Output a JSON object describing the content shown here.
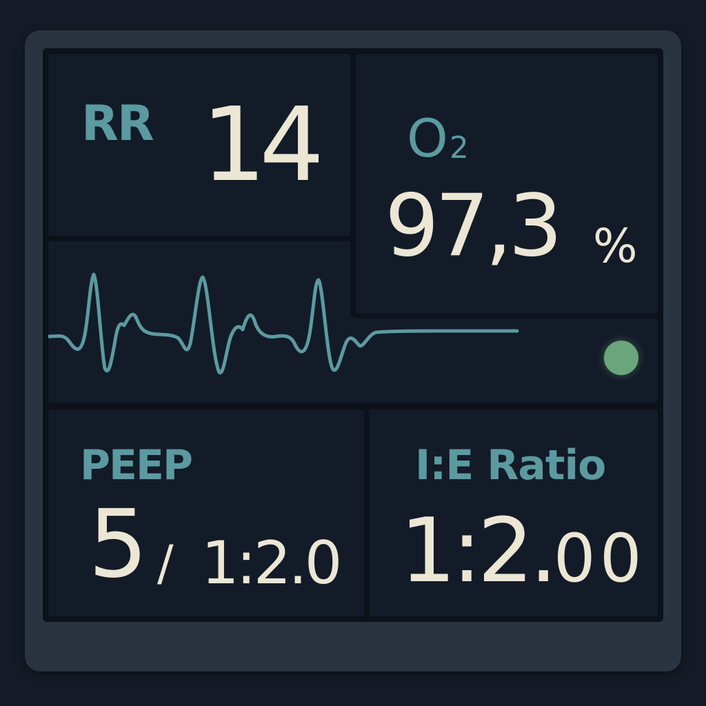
{
  "respiratory_rate": {
    "label": "RR",
    "value": "14"
  },
  "oxygen": {
    "label": "O",
    "label_subscript": "2",
    "value": "97,3",
    "unit": "%"
  },
  "waveform": {
    "status_indicator_color": "#6aa67a",
    "trace_color": "#5b9aa0"
  },
  "peep": {
    "label": "PEEP",
    "value": "5",
    "separator": "/",
    "secondary_value": "1:2.0"
  },
  "ie_ratio": {
    "label": "I:E Ratio",
    "value_main": "1:2.",
    "value_decimals": "00"
  },
  "colors": {
    "accent": "#5b9aa0",
    "value_text": "#ece6d4",
    "background": "#131b28",
    "status_ok": "#6aa67a"
  }
}
